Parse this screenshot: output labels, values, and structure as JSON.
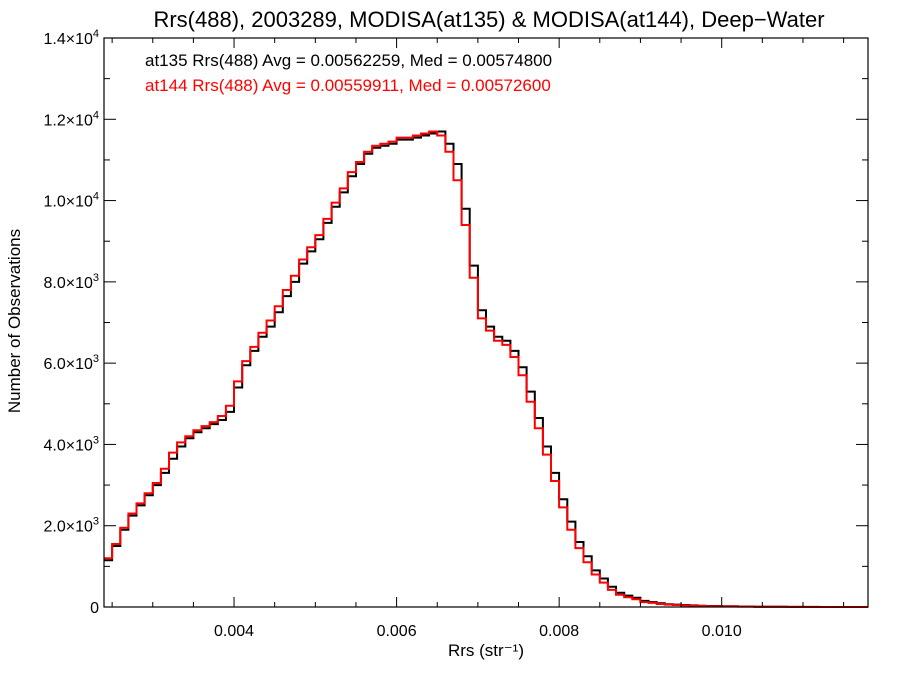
{
  "chart_data": {
    "type": "line",
    "title": "Rrs(488), 2003289, MODISA(at135) & MODISA(at144), Deep−Water",
    "xlabel": "Rrs (str⁻¹)",
    "ylabel": "Number of Observations",
    "xlim": [
      0.0024,
      0.0118
    ],
    "ylim": [
      0,
      14000
    ],
    "x_ticks": [
      {
        "value": 0.004,
        "label": "0.004"
      },
      {
        "value": 0.006,
        "label": "0.006"
      },
      {
        "value": 0.008,
        "label": "0.008"
      },
      {
        "value": 0.01,
        "label": "0.010"
      }
    ],
    "y_ticks": [
      {
        "value": 0,
        "mant": "0",
        "exp": ""
      },
      {
        "value": 2000,
        "mant": "2.0×10",
        "exp": "3"
      },
      {
        "value": 4000,
        "mant": "4.0×10",
        "exp": "3"
      },
      {
        "value": 6000,
        "mant": "6.0×10",
        "exp": "3"
      },
      {
        "value": 8000,
        "mant": "8.0×10",
        "exp": "3"
      },
      {
        "value": 10000,
        "mant": "1.0×10",
        "exp": "4"
      },
      {
        "value": 12000,
        "mant": "1.2×10",
        "exp": "4"
      },
      {
        "value": 14000,
        "mant": "1.4×10",
        "exp": "4"
      }
    ],
    "annotations": [
      {
        "text": "at135 Rrs(488) Avg = 0.00562259, Med = 0.00574800",
        "color": "#000000"
      },
      {
        "text": "at144 Rrs(488) Avg = 0.00559911, Med = 0.00572600",
        "color": "#ff0000"
      }
    ],
    "grid": false,
    "step": true,
    "series": [
      {
        "color": "#000000",
        "x": [
          0.0024,
          0.0025,
          0.0026,
          0.0027,
          0.0028,
          0.0029,
          0.003,
          0.0031,
          0.0032,
          0.0033,
          0.0034,
          0.0035,
          0.0036,
          0.0037,
          0.0038,
          0.0039,
          0.004,
          0.0041,
          0.0042,
          0.0043,
          0.0044,
          0.0045,
          0.0046,
          0.0047,
          0.0048,
          0.0049,
          0.005,
          0.0051,
          0.0052,
          0.0053,
          0.0054,
          0.0055,
          0.0056,
          0.0057,
          0.0058,
          0.0059,
          0.006,
          0.0061,
          0.0062,
          0.0063,
          0.0064,
          0.0065,
          0.0066,
          0.0067,
          0.0068,
          0.0069,
          0.007,
          0.0071,
          0.0072,
          0.0073,
          0.0074,
          0.0075,
          0.0076,
          0.0077,
          0.0078,
          0.0079,
          0.008,
          0.0081,
          0.0082,
          0.0083,
          0.0084,
          0.0085,
          0.0086,
          0.0087,
          0.0088,
          0.0089,
          0.009,
          0.0091,
          0.0092,
          0.0093,
          0.0094,
          0.0095,
          0.0096,
          0.0097,
          0.0098,
          0.01,
          0.0102,
          0.0104,
          0.0106,
          0.0108,
          0.011,
          0.0112,
          0.0114,
          0.0116,
          0.0118
        ],
        "y": [
          1150,
          1500,
          1900,
          2250,
          2500,
          2750,
          3000,
          3300,
          3650,
          3950,
          4150,
          4300,
          4400,
          4500,
          4600,
          4800,
          5400,
          5950,
          6300,
          6650,
          6900,
          7250,
          7650,
          8000,
          8450,
          8750,
          9050,
          9450,
          9850,
          10200,
          10600,
          10900,
          11150,
          11300,
          11350,
          11400,
          11500,
          11500,
          11550,
          11600,
          11650,
          11700,
          11400,
          10900,
          9800,
          8400,
          7300,
          6900,
          6650,
          6550,
          6300,
          5900,
          5300,
          4650,
          3950,
          3300,
          2650,
          2100,
          1600,
          1250,
          900,
          700,
          500,
          350,
          280,
          230,
          150,
          120,
          90,
          70,
          60,
          50,
          40,
          30,
          25,
          18,
          12,
          8,
          5,
          3,
          2,
          1,
          1,
          0,
          0
        ]
      },
      {
        "color": "#ff0000",
        "x": [
          0.0024,
          0.0025,
          0.0026,
          0.0027,
          0.0028,
          0.0029,
          0.003,
          0.0031,
          0.0032,
          0.0033,
          0.0034,
          0.0035,
          0.0036,
          0.0037,
          0.0038,
          0.0039,
          0.004,
          0.0041,
          0.0042,
          0.0043,
          0.0044,
          0.0045,
          0.0046,
          0.0047,
          0.0048,
          0.0049,
          0.005,
          0.0051,
          0.0052,
          0.0053,
          0.0054,
          0.0055,
          0.0056,
          0.0057,
          0.0058,
          0.0059,
          0.006,
          0.0061,
          0.0062,
          0.0063,
          0.0064,
          0.0065,
          0.0066,
          0.0067,
          0.0068,
          0.0069,
          0.007,
          0.0071,
          0.0072,
          0.0073,
          0.0074,
          0.0075,
          0.0076,
          0.0077,
          0.0078,
          0.0079,
          0.008,
          0.0081,
          0.0082,
          0.0083,
          0.0084,
          0.0085,
          0.0086,
          0.0087,
          0.0088,
          0.0089,
          0.009,
          0.0091,
          0.0092,
          0.0093,
          0.0094,
          0.0095,
          0.0096,
          0.0097,
          0.0098,
          0.01,
          0.0102,
          0.0104,
          0.0106,
          0.0108,
          0.011,
          0.0112,
          0.0114,
          0.0116,
          0.0118
        ],
        "y": [
          1200,
          1550,
          1950,
          2300,
          2550,
          2800,
          3050,
          3400,
          3800,
          4050,
          4200,
          4350,
          4450,
          4550,
          4700,
          4950,
          5550,
          6050,
          6400,
          6750,
          7050,
          7400,
          7800,
          8150,
          8550,
          8850,
          9150,
          9550,
          9950,
          10300,
          10700,
          10950,
          11200,
          11350,
          11400,
          11450,
          11550,
          11550,
          11600,
          11650,
          11700,
          11600,
          11200,
          10500,
          9400,
          8100,
          7100,
          6800,
          6550,
          6450,
          6150,
          5700,
          5050,
          4400,
          3750,
          3100,
          2450,
          1900,
          1450,
          1100,
          800,
          600,
          420,
          300,
          240,
          190,
          120,
          100,
          75,
          60,
          50,
          40,
          30,
          25,
          20,
          14,
          10,
          6,
          4,
          2,
          1,
          1,
          0,
          0,
          0
        ]
      }
    ]
  }
}
